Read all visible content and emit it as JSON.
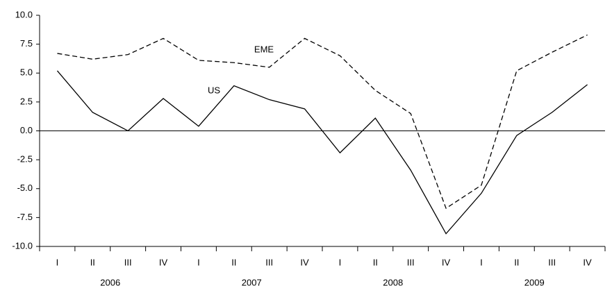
{
  "chart_data": {
    "type": "line",
    "categories": [
      "I",
      "II",
      "III",
      "IV",
      "I",
      "II",
      "III",
      "IV",
      "I",
      "II",
      "III",
      "IV",
      "I",
      "II",
      "III",
      "IV"
    ],
    "category_groups": [
      "2006",
      "2007",
      "2008",
      "2009"
    ],
    "series": [
      {
        "name": "EME",
        "color": "#000000",
        "style": "dashed",
        "values": [
          6.7,
          6.2,
          6.6,
          8.0,
          6.1,
          5.9,
          5.5,
          8.0,
          6.5,
          3.5,
          1.5,
          -6.7,
          -4.7,
          5.2,
          6.8,
          8.3
        ]
      },
      {
        "name": "US",
        "color": "#000000",
        "style": "solid",
        "values": [
          5.2,
          1.6,
          0.0,
          2.8,
          0.4,
          3.9,
          2.7,
          1.9,
          -1.9,
          1.1,
          -3.4,
          -8.9,
          -5.4,
          -0.4,
          1.6,
          4.0
        ]
      }
    ],
    "ylim": [
      -10,
      10
    ],
    "yticks": [
      {
        "value": -10,
        "label": "-10.0"
      },
      -7.5,
      {
        "value": -5,
        "label": "-5.0"
      },
      -2.5,
      {
        "value": 0,
        "label": "0.0"
      },
      2.5,
      {
        "value": 5,
        "label": "5.0"
      },
      7.5,
      {
        "value": 10,
        "label": "10.0"
      }
    ],
    "zero_line": true
  }
}
